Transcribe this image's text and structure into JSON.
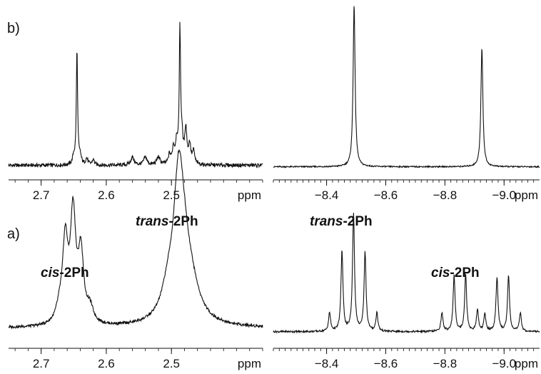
{
  "figure": {
    "panel_labels": [
      "b)",
      "a)"
    ],
    "annotations": {
      "a_left_cis": {
        "italic": "cis",
        "rest": "-2Ph"
      },
      "a_left_trans": {
        "italic": "trans",
        "rest": "-2Ph"
      },
      "a_right_trans": {
        "italic": "trans",
        "rest": "-2Ph"
      },
      "a_right_cis": {
        "italic": "cis",
        "rest": "-2Ph"
      }
    }
  },
  "chart_data": [
    {
      "id": "b-left",
      "type": "line",
      "panel": "b)",
      "xlabel": "ppm",
      "xlim": [
        2.75,
        2.36
      ],
      "xticks": [
        2.7,
        2.6,
        2.5
      ],
      "tick_labels": [
        "2.7",
        "2.6",
        "2.5"
      ],
      "baseline": 0.02,
      "noise": 0.012,
      "peaks": [
        {
          "x": 2.645,
          "h": 0.73,
          "w": 0.0012
        },
        {
          "x": 2.487,
          "h": 0.82,
          "w": 0.0012
        },
        {
          "x": 2.478,
          "h": 0.22,
          "w": 0.002
        },
        {
          "x": 2.484,
          "h": 0.15,
          "w": 0.002
        },
        {
          "x": 2.492,
          "h": 0.14,
          "w": 0.002
        },
        {
          "x": 2.472,
          "h": 0.12,
          "w": 0.002
        },
        {
          "x": 2.466,
          "h": 0.08,
          "w": 0.002
        },
        {
          "x": 2.497,
          "h": 0.1,
          "w": 0.002
        },
        {
          "x": 2.503,
          "h": 0.06,
          "w": 0.002
        },
        {
          "x": 2.56,
          "h": 0.05,
          "w": 0.003
        },
        {
          "x": 2.54,
          "h": 0.05,
          "w": 0.003
        },
        {
          "x": 2.52,
          "h": 0.05,
          "w": 0.003
        },
        {
          "x": 2.65,
          "h": 0.05,
          "w": 0.002
        },
        {
          "x": 2.64,
          "h": 0.05,
          "w": 0.002
        },
        {
          "x": 2.63,
          "h": 0.04,
          "w": 0.002
        },
        {
          "x": 2.62,
          "h": 0.035,
          "w": 0.002
        }
      ]
    },
    {
      "id": "b-right",
      "type": "line",
      "panel": "b)",
      "xlabel": "ppm",
      "xlim": [
        -8.22,
        -9.12
      ],
      "xticks": [
        -8.4,
        -8.6,
        -8.8,
        -9.0
      ],
      "tick_labels": [
        "−8.4",
        "−8.6",
        "−8.8",
        "−9.0"
      ],
      "baseline": 0.01,
      "noise": 0.004,
      "peaks": [
        {
          "x": -8.493,
          "h": 0.98,
          "w": 0.004
        },
        {
          "x": -8.925,
          "h": 0.72,
          "w": 0.004
        }
      ]
    },
    {
      "id": "a-left",
      "type": "line",
      "panel": "a)",
      "xlabel": "ppm",
      "xlim": [
        2.75,
        2.36
      ],
      "xticks": [
        2.7,
        2.6,
        2.5
      ],
      "tick_labels": [
        "2.7",
        "2.6",
        "2.5"
      ],
      "baseline": 0.03,
      "noise": 0.006,
      "peaks": [
        {
          "x": 2.663,
          "h": 0.33,
          "w": 0.005
        },
        {
          "x": 2.651,
          "h": 0.44,
          "w": 0.005
        },
        {
          "x": 2.639,
          "h": 0.28,
          "w": 0.005
        },
        {
          "x": 2.672,
          "h": 0.05,
          "w": 0.006
        },
        {
          "x": 2.625,
          "h": 0.06,
          "w": 0.006
        },
        {
          "x": 2.489,
          "h": 0.44,
          "w": 0.009
        },
        {
          "x": 2.483,
          "h": 0.25,
          "w": 0.014
        },
        {
          "x": 2.47,
          "h": 0.1,
          "w": 0.016
        },
        {
          "x": 2.505,
          "h": 0.1,
          "w": 0.012
        }
      ]
    },
    {
      "id": "a-right",
      "type": "line",
      "panel": "a)",
      "xlabel": "ppm",
      "xlim": [
        -8.22,
        -9.12
      ],
      "xticks": [
        -8.4,
        -8.6,
        -8.8,
        -9.0
      ],
      "tick_labels": [
        "−8.4",
        "−8.6",
        "−8.8",
        "−9.0"
      ],
      "baseline": 0.015,
      "noise": 0.006,
      "peaks": [
        {
          "x": -8.41,
          "h": 0.12,
          "w": 0.004
        },
        {
          "x": -8.452,
          "h": 0.52,
          "w": 0.004
        },
        {
          "x": -8.491,
          "h": 0.76,
          "w": 0.004
        },
        {
          "x": -8.53,
          "h": 0.51,
          "w": 0.004
        },
        {
          "x": -8.57,
          "h": 0.12,
          "w": 0.004
        },
        {
          "x": -8.79,
          "h": 0.12,
          "w": 0.004
        },
        {
          "x": -8.831,
          "h": 0.36,
          "w": 0.004
        },
        {
          "x": -8.87,
          "h": 0.37,
          "w": 0.004
        },
        {
          "x": -8.91,
          "h": 0.14,
          "w": 0.004
        },
        {
          "x": -8.935,
          "h": 0.11,
          "w": 0.004
        },
        {
          "x": -8.976,
          "h": 0.35,
          "w": 0.004
        },
        {
          "x": -9.015,
          "h": 0.36,
          "w": 0.004
        },
        {
          "x": -9.055,
          "h": 0.12,
          "w": 0.004
        }
      ]
    }
  ]
}
